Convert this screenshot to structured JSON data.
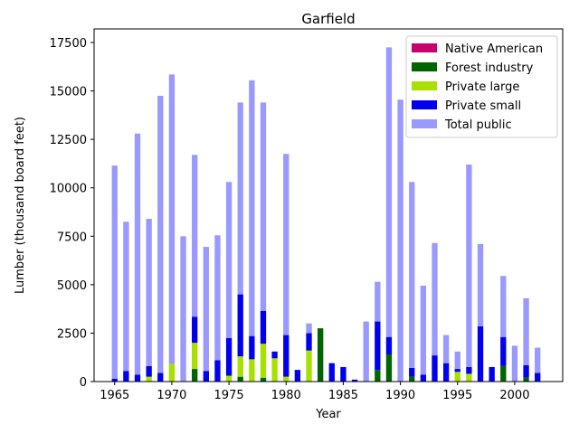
{
  "chart_data": {
    "type": "bar",
    "stacked": true,
    "title": "Garfield",
    "xlabel": "Year",
    "ylabel": "Lumber (thousand board feet)",
    "xlim": [
      1963.2,
      2004.2
    ],
    "ylim": [
      0,
      18200
    ],
    "xticks": [
      1965,
      1970,
      1975,
      1980,
      1985,
      1990,
      1995,
      2000
    ],
    "yticks": [
      0,
      2500,
      5000,
      7500,
      10000,
      12500,
      15000,
      17500
    ],
    "ytick_labels": [
      "0",
      "2500",
      "5000",
      "7500",
      "10000",
      "12500",
      "15000",
      "17500"
    ],
    "grid": false,
    "legend_position": "top-right",
    "years": [
      1965,
      1966,
      1967,
      1968,
      1969,
      1970,
      1971,
      1972,
      1973,
      1974,
      1975,
      1976,
      1977,
      1978,
      1979,
      1980,
      1981,
      1982,
      1983,
      1984,
      1985,
      1986,
      1987,
      1988,
      1989,
      1990,
      1991,
      1992,
      1993,
      1994,
      1995,
      1996,
      1997,
      1998,
      1999,
      2000,
      2001,
      2002
    ],
    "series": [
      {
        "name": "Native American",
        "color": "#c8006e",
        "values": [
          0,
          0,
          0,
          0,
          0,
          0,
          0,
          0,
          0,
          0,
          0,
          0,
          0,
          0,
          0,
          0,
          0,
          0,
          0,
          0,
          0,
          0,
          0,
          0,
          0,
          0,
          0,
          0,
          0,
          0,
          0,
          0,
          0,
          0,
          0,
          0,
          0,
          0
        ]
      },
      {
        "name": "Forest industry",
        "color": "#006400",
        "values": [
          0,
          0,
          0,
          0,
          0,
          0,
          0,
          650,
          0,
          0,
          0,
          250,
          0,
          200,
          0,
          0,
          0,
          0,
          2750,
          0,
          0,
          0,
          0,
          600,
          1400,
          0,
          250,
          0,
          0,
          0,
          0,
          0,
          0,
          0,
          800,
          0,
          200,
          0
        ]
      },
      {
        "name": "Private large",
        "color": "#a8e000",
        "values": [
          0,
          0,
          0,
          250,
          0,
          900,
          0,
          1350,
          0,
          0,
          300,
          1050,
          1150,
          1750,
          1200,
          250,
          0,
          1600,
          0,
          0,
          0,
          0,
          0,
          0,
          0,
          0,
          0,
          0,
          0,
          0,
          500,
          400,
          0,
          0,
          0,
          0,
          0,
          0
        ]
      },
      {
        "name": "Private small",
        "color": "#0000ee",
        "values": [
          150,
          550,
          350,
          550,
          450,
          0,
          0,
          1350,
          550,
          1100,
          1950,
          3200,
          1200,
          1700,
          350,
          2150,
          600,
          900,
          0,
          950,
          750,
          100,
          0,
          2500,
          900,
          0,
          450,
          350,
          1350,
          950,
          150,
          350,
          2850,
          750,
          1500,
          0,
          650,
          450
        ]
      },
      {
        "name": "Total public",
        "color": "#9999ff",
        "values": [
          11000,
          7700,
          12450,
          7600,
          14300,
          14950,
          7500,
          8350,
          6400,
          6450,
          8050,
          9900,
          13200,
          10750,
          0,
          9350,
          0,
          500,
          0,
          0,
          0,
          0,
          3100,
          2050,
          14950,
          14550,
          9600,
          4600,
          5800,
          1450,
          900,
          10450,
          4250,
          0,
          3150,
          1850,
          3450,
          1300
        ]
      }
    ]
  }
}
